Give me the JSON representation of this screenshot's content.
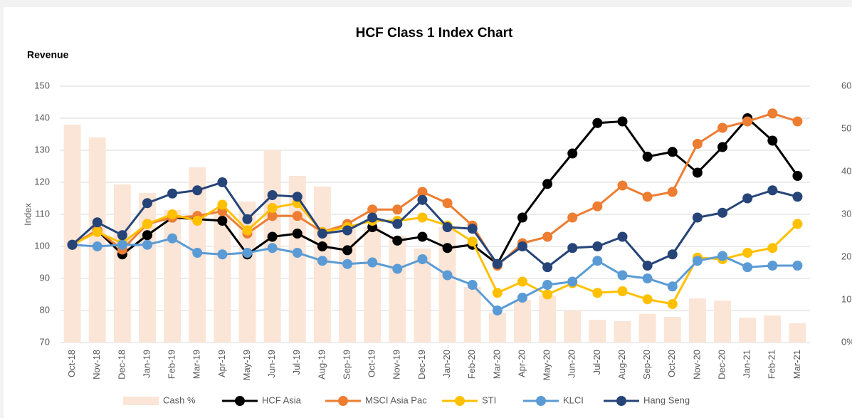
{
  "chart_data": {
    "type": "combo",
    "title": "HCF Class 1 Index Chart",
    "subtitle": "Revenue",
    "y_label": "Index",
    "categories": [
      "Oct-18",
      "Nov-18",
      "Dec-18",
      "Jan-19",
      "Feb-19",
      "Mar-19",
      "Apr-19",
      "May-19",
      "Jun-19",
      "Jul-19",
      "Aug-19",
      "Sep-19",
      "Oct-19",
      "Nov-19",
      "Dec-19",
      "Jan-20",
      "Feb-20",
      "Mar-20",
      "Apr-20",
      "May-20",
      "Jun-20",
      "Jul-20",
      "Aug-20",
      "Sep-20",
      "Oct-20",
      "Nov-20",
      "Dec-20",
      "Jan-21",
      "Feb-21",
      "Mar-21"
    ],
    "ylim": [
      70,
      150
    ],
    "yticks": [
      70,
      80,
      90,
      100,
      110,
      120,
      130,
      140,
      150
    ],
    "y2lim": [
      0,
      60
    ],
    "y2ticks": [
      {
        "value": 0,
        "label": "0%"
      },
      {
        "value": 10,
        "label": "10%"
      },
      {
        "value": 20,
        "label": "20%"
      },
      {
        "value": 30,
        "label": "30%"
      },
      {
        "value": 40,
        "label": "40%"
      },
      {
        "value": 50,
        "label": "50%"
      },
      {
        "value": 60,
        "label": "60%"
      }
    ],
    "grid": true,
    "legend": "bottom",
    "series": [
      {
        "name": "Cash %",
        "kind": "bar",
        "axis": "y2",
        "color": "#fbe5d6",
        "values": [
          51,
          48,
          37,
          35,
          31,
          41,
          30,
          33,
          45,
          39,
          36.5,
          27,
          27,
          25,
          22,
          27,
          13,
          7,
          10,
          11,
          7.5,
          5.3,
          5,
          6.7,
          6,
          10.3,
          9.8,
          5.8,
          6.3,
          4.5
        ]
      },
      {
        "name": "HCF Asia",
        "kind": "line",
        "color": "#000000",
        "values": [
          100.5,
          105,
          97.5,
          103.5,
          109,
          108.5,
          108,
          97.5,
          103,
          104,
          100,
          98.8,
          106,
          101.8,
          103,
          99.5,
          100.5,
          94.5,
          109,
          119.5,
          129,
          138.5,
          139,
          128,
          129.5,
          123,
          131,
          140,
          133,
          122
        ]
      },
      {
        "name": "MSCI Asia Pac",
        "kind": "line",
        "color": "#ed7d31",
        "values": [
          100.5,
          105,
          99,
          107,
          109,
          109.5,
          111,
          104,
          109.5,
          109.5,
          104.5,
          107,
          111.5,
          111.5,
          117,
          113.5,
          106.5,
          94,
          101,
          103,
          109,
          112.5,
          119,
          115.5,
          117,
          132,
          137,
          139,
          141.5,
          139
        ]
      },
      {
        "name": "STI",
        "kind": "line",
        "color": "#ffc000",
        "values": [
          100.5,
          104.5,
          101,
          107,
          110,
          108,
          113,
          105,
          112,
          113.5,
          104.5,
          106,
          108,
          108,
          109,
          106.5,
          101.5,
          85.5,
          89,
          85,
          88.5,
          85.5,
          86,
          83.5,
          82,
          96.5,
          96,
          98,
          99.5,
          107
        ]
      },
      {
        "name": "KLCI",
        "kind": "line",
        "color": "#5b9bd5",
        "values": [
          100.5,
          100,
          100.5,
          100.5,
          102.5,
          98,
          97.5,
          98,
          99.5,
          98,
          95.5,
          94.5,
          95,
          93,
          96,
          91,
          88,
          80,
          84,
          88,
          89,
          95.5,
          91,
          90,
          87.5,
          95.5,
          97,
          93.5,
          94,
          94
        ]
      },
      {
        "name": "Hang Seng",
        "kind": "line",
        "color": "#264478",
        "values": [
          100.5,
          107.5,
          103.5,
          113.5,
          116.5,
          117.5,
          120,
          108.5,
          116,
          115.5,
          104,
          105,
          109,
          107,
          114.5,
          106,
          105.5,
          94.5,
          100,
          93.5,
          99.5,
          100,
          103,
          94,
          97.5,
          109,
          110.5,
          115,
          117.5,
          115.5
        ]
      }
    ]
  }
}
